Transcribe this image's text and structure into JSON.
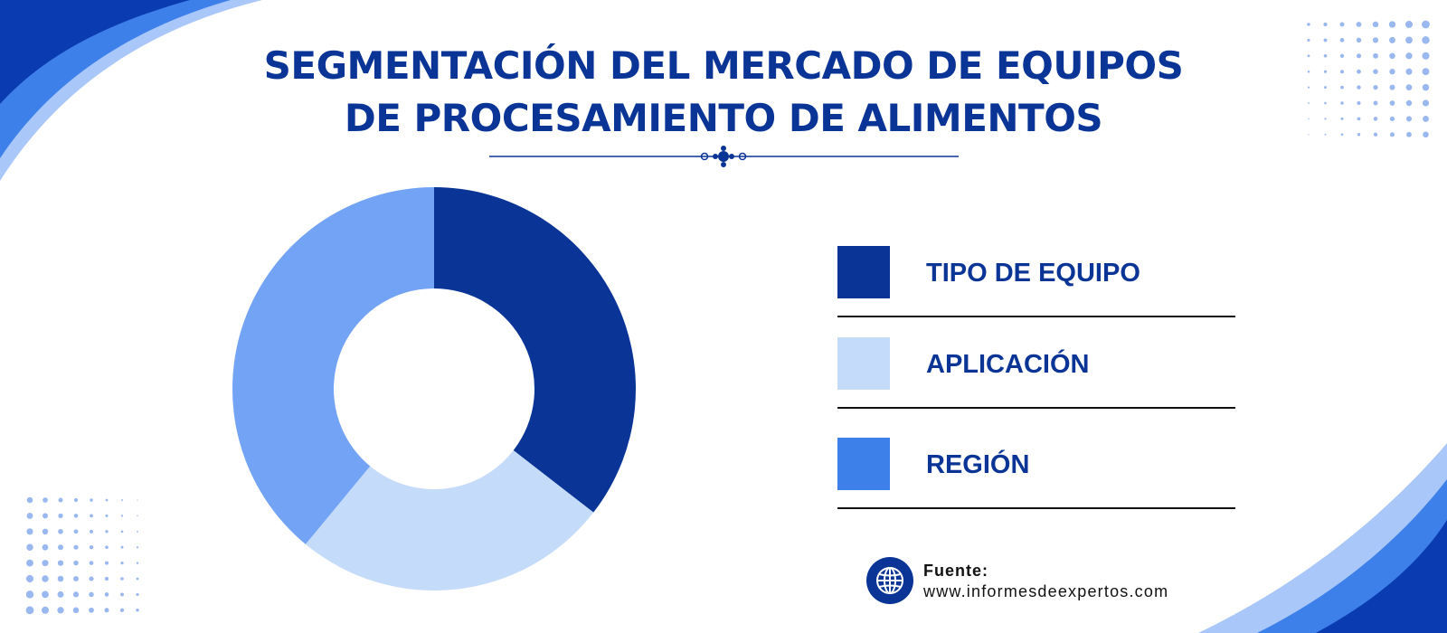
{
  "colors": {
    "navy": "#0A3596",
    "light_blue": "#C5DBFA",
    "mid_blue": "#73A3F5",
    "blue": "#3E80EA",
    "wave_dark": "#0A3BB0",
    "wave_light": "#A9C7F9",
    "dot": "#9AB8F0",
    "text_dark": "#111111"
  },
  "title": {
    "line1": "SEGMENTACIÓN DEL MERCADO DE EQUIPOS",
    "line2": "DE PROCESAMIENTO DE ALIMENTOS"
  },
  "chart_data": {
    "type": "pie",
    "donut": true,
    "title": "SEGMENTACIÓN DEL MERCADO DE EQUIPOS DE PROCESAMIENTO DE ALIMENTOS",
    "series": [
      {
        "name": "TIPO DE EQUIPO",
        "value": 35.5,
        "color": "#0A3596"
      },
      {
        "name": "APLICACIÓN",
        "value": 25.5,
        "color": "#C5DBFA"
      },
      {
        "name": "REGIÓN",
        "value": 39.0,
        "color": "#73A3F5"
      }
    ],
    "legend_position": "right"
  },
  "legend": [
    {
      "label": "TIPO DE EQUIPO",
      "color": "#0A3596"
    },
    {
      "label": "APLICACIÓN",
      "color": "#C5DBFA"
    },
    {
      "label": "REGIÓN",
      "color": "#3E80EA"
    }
  ],
  "source": {
    "label": "Fuente:",
    "url": "www.informesdeexpertos.com",
    "icon": "globe-icon"
  }
}
